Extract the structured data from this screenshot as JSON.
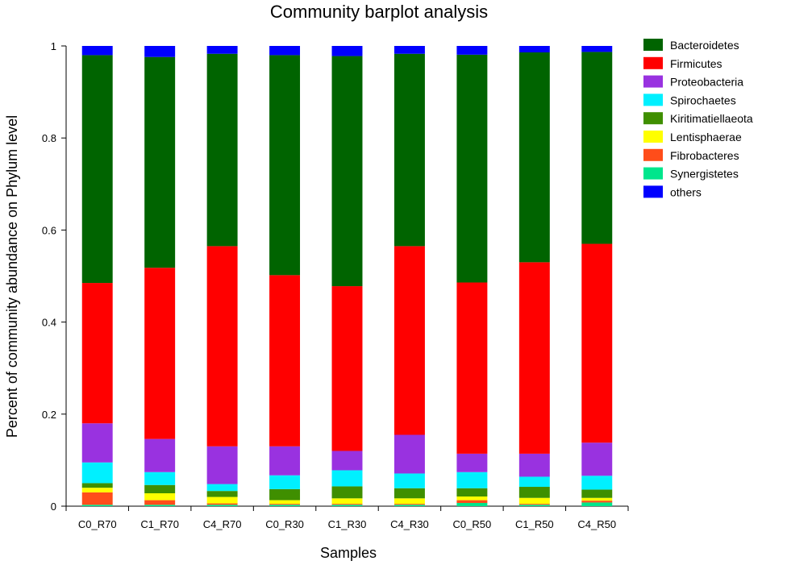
{
  "chart_data": {
    "type": "bar",
    "stacked": true,
    "title": "Community barplot analysis",
    "xlabel": "Samples",
    "ylabel": "Percent of community abundance on Phylum level",
    "ylim": [
      0,
      1
    ],
    "yticks": [
      "0",
      "0.2",
      "0.4",
      "0.6",
      "0.8",
      "1"
    ],
    "categories": [
      "C0_R70",
      "C1_R70",
      "C4_R70",
      "C0_R30",
      "C1_R30",
      "C4_R30",
      "C0_R50",
      "C1_R50",
      "C4_R50"
    ],
    "legend_position": "right",
    "series": [
      {
        "name": "Synergistetes",
        "color": "#00e68c",
        "values": [
          0.003,
          0.003,
          0.003,
          0.003,
          0.003,
          0.003,
          0.007,
          0.003,
          0.008
        ]
      },
      {
        "name": "Fibrobacteres",
        "color": "#ff4d1a",
        "values": [
          0.027,
          0.01,
          0.003,
          0.002,
          0.002,
          0.002,
          0.006,
          0.002,
          0.004
        ]
      },
      {
        "name": "Lentisphaerae",
        "color": "#ffff00",
        "values": [
          0.01,
          0.015,
          0.014,
          0.008,
          0.012,
          0.012,
          0.008,
          0.013,
          0.006
        ]
      },
      {
        "name": "Kiritimatiellaeota",
        "color": "#3f8f00",
        "values": [
          0.01,
          0.018,
          0.013,
          0.024,
          0.026,
          0.022,
          0.018,
          0.024,
          0.018
        ]
      },
      {
        "name": "Spirochaetes",
        "color": "#00f0ff",
        "values": [
          0.045,
          0.028,
          0.015,
          0.03,
          0.035,
          0.032,
          0.035,
          0.022,
          0.03
        ]
      },
      {
        "name": "Proteobacteria",
        "color": "#9932e0",
        "values": [
          0.085,
          0.072,
          0.082,
          0.063,
          0.042,
          0.084,
          0.04,
          0.05,
          0.072
        ]
      },
      {
        "name": "Firmicutes",
        "color": "#ff0000",
        "values": [
          0.305,
          0.372,
          0.435,
          0.372,
          0.358,
          0.41,
          0.372,
          0.416,
          0.432
        ]
      },
      {
        "name": "Bacteroidetes",
        "color": "#006400",
        "values": [
          0.495,
          0.458,
          0.418,
          0.478,
          0.5,
          0.418,
          0.495,
          0.456,
          0.417
        ]
      },
      {
        "name": "others",
        "color": "#0000ff",
        "values": [
          0.02,
          0.024,
          0.017,
          0.02,
          0.022,
          0.017,
          0.019,
          0.014,
          0.013
        ]
      }
    ],
    "legend_order": [
      "Bacteroidetes",
      "Firmicutes",
      "Proteobacteria",
      "Spirochaetes",
      "Kiritimatiellaeota",
      "Lentisphaerae",
      "Fibrobacteres",
      "Synergistetes",
      "others"
    ]
  }
}
